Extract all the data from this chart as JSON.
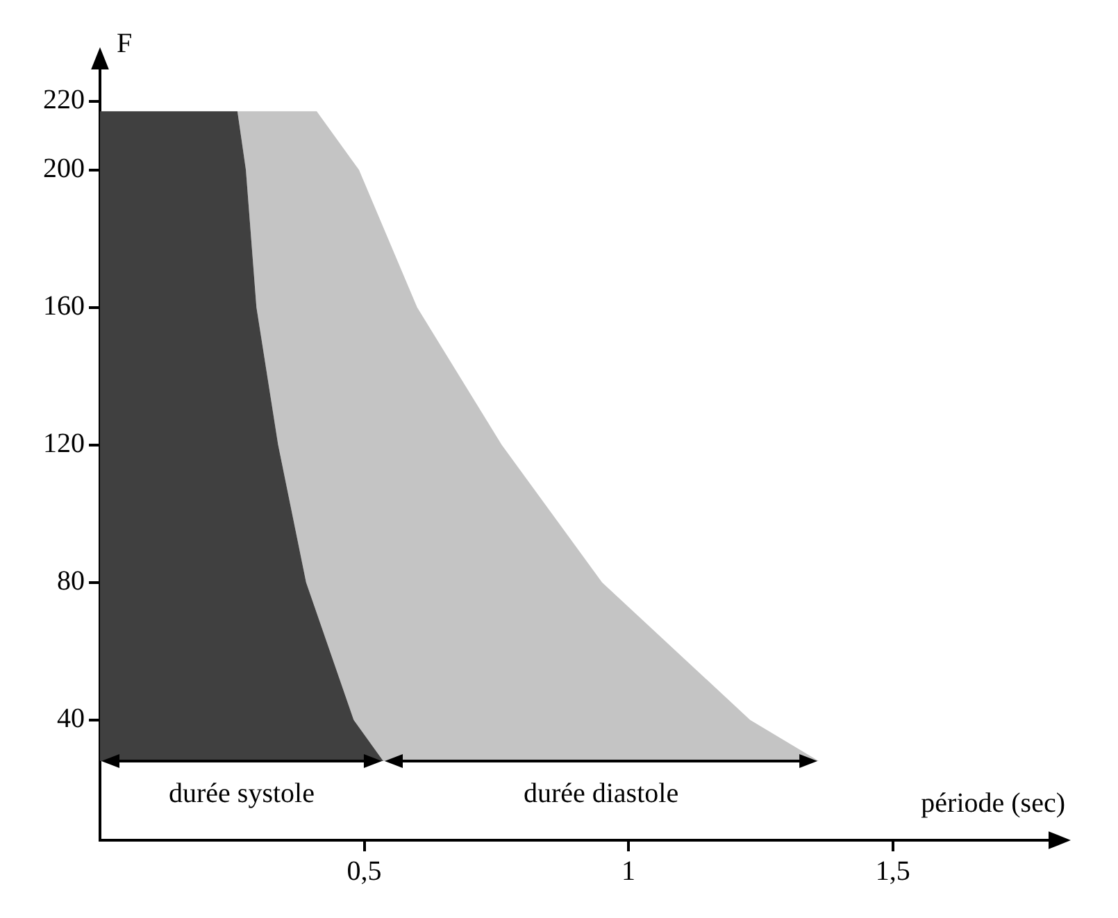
{
  "chart_data": {
    "type": "area",
    "ylabel": "F",
    "xlabel": "période (sec)",
    "xlim": [
      0,
      1.8
    ],
    "ylim": [
      5,
      230
    ],
    "xticks": [
      {
        "value": 0.5,
        "label": "0,5"
      },
      {
        "value": 1,
        "label": "1"
      },
      {
        "value": 1.5,
        "label": "1,5"
      }
    ],
    "yticks": [
      40,
      80,
      120,
      160,
      200,
      220
    ],
    "grid": false,
    "series": [
      {
        "color": "#404040",
        "x": [
          0,
          0,
          0.26,
          0.276,
          0.296,
          0.337,
          0.39,
          0.48,
          0.536
        ],
        "values": [
          28,
          217,
          217,
          200,
          160,
          120,
          80,
          40,
          28
        ]
      },
      {
        "color": "#c4c4c4",
        "x": [
          0.536,
          0.48,
          0.39,
          0.337,
          0.296,
          0.276,
          0.26,
          0.41,
          0.49,
          0.6,
          0.76,
          0.95,
          1.23,
          1.36
        ],
        "values": [
          28,
          40,
          80,
          120,
          160,
          200,
          217,
          217,
          200,
          160,
          120,
          80,
          40,
          28
        ]
      }
    ],
    "annotations": [
      "durée systole",
      "durée diastole"
    ]
  }
}
